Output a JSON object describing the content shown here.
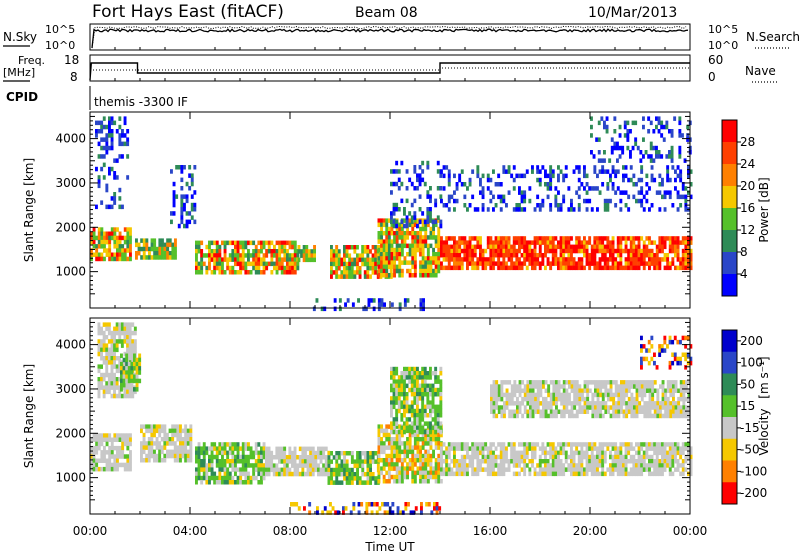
{
  "header": {
    "site_title": "Fort Hays East (fitACF)",
    "beam": "Beam 08",
    "date": "10/Mar/2013"
  },
  "panels": {
    "nsky": {
      "left_label": "N.Sky",
      "right_label": "N.Search",
      "tick_top": "10^5",
      "tick_bottom": "10^0",
      "rtick_top": "10^5",
      "rtick_bottom": "10^0"
    },
    "freq": {
      "left_label_1": "Freq.",
      "left_label_2": "[MHz]",
      "right_label": "Nave",
      "ticks_left": [
        "18",
        "8"
      ],
      "ticks_right": [
        "60",
        "0"
      ]
    },
    "cpid": {
      "label": "CPID",
      "text": "themis -3300 IF"
    }
  },
  "chart_data": [
    {
      "type": "heatmap",
      "name": "power",
      "ylabel": "Slant Range [km]",
      "y_ticks": [
        1000,
        2000,
        3000,
        4000
      ],
      "ylim": [
        180,
        4600
      ],
      "xlim_hours": [
        0,
        24
      ],
      "colorbar": {
        "label": "Power [dB]",
        "tick_labels": [
          "4",
          "8",
          "12",
          "16",
          "20",
          "24",
          "28"
        ],
        "colors": [
          "#0000ff",
          "#2a46c8",
          "#2e8b57",
          "#55c02a",
          "#f5c800",
          "#ff8000",
          "#ff4000",
          "#ff0000"
        ]
      },
      "echo_regions": [
        {
          "t_start": 0.0,
          "t_end": 1.6,
          "range_low": 1300,
          "range_high": 2000,
          "level": "high"
        },
        {
          "t_start": 0.2,
          "t_end": 1.5,
          "range_low": 2500,
          "range_high": 4500,
          "level": "low"
        },
        {
          "t_start": 1.8,
          "t_end": 3.4,
          "range_low": 1300,
          "range_high": 1750,
          "level": "mid"
        },
        {
          "t_start": 3.2,
          "t_end": 4.2,
          "range_low": 2000,
          "range_high": 3500,
          "level": "low"
        },
        {
          "t_start": 4.2,
          "t_end": 8.3,
          "range_low": 1000,
          "range_high": 1700,
          "level": "high"
        },
        {
          "t_start": 8.3,
          "t_end": 9.0,
          "range_low": 1300,
          "range_high": 1600,
          "level": "mid"
        },
        {
          "t_start": 9.6,
          "t_end": 12.0,
          "range_low": 900,
          "range_high": 1600,
          "level": "high"
        },
        {
          "t_start": 11.5,
          "t_end": 13.9,
          "range_low": 900,
          "range_high": 2200,
          "level": "high"
        },
        {
          "t_start": 12.0,
          "t_end": 14.0,
          "range_low": 2000,
          "range_high": 3500,
          "level": "low"
        },
        {
          "t_start": 14.0,
          "t_end": 24.0,
          "range_low": 1100,
          "range_high": 1800,
          "level": "veryhigh"
        },
        {
          "t_start": 14.0,
          "t_end": 24.0,
          "range_low": 2400,
          "range_high": 3400,
          "level": "low"
        },
        {
          "t_start": 20.0,
          "t_end": 24.0,
          "range_low": 3500,
          "range_high": 4500,
          "level": "low"
        },
        {
          "t_start": 8.5,
          "t_end": 13.5,
          "range_low": 200,
          "range_high": 400,
          "level": "low"
        }
      ]
    },
    {
      "type": "heatmap",
      "name": "velocity",
      "ylabel": "Slant Range [km]",
      "y_ticks": [
        1000,
        2000,
        3000,
        4000
      ],
      "ylim": [
        180,
        4600
      ],
      "xlabel": "Time UT",
      "x_tick_labels": [
        "00:00",
        "04:00",
        "08:00",
        "12:00",
        "16:00",
        "20:00",
        "00:00"
      ],
      "x_ticks_hours": [
        0,
        4,
        8,
        12,
        16,
        20,
        24
      ],
      "colorbar": {
        "label": "Velocity",
        "label_units": "[m s⁻¹]",
        "tick_labels": [
          "200",
          "100",
          "50",
          "15",
          "-15",
          "-50",
          "-100",
          "-200"
        ],
        "colors": [
          "#0000cc",
          "#2a46c8",
          "#2e8b57",
          "#55c02a",
          "#c8c8c8",
          "#f5c800",
          "#ff8000",
          "#ff0000"
        ]
      },
      "echo_regions": [
        {
          "t_start": 0.0,
          "t_end": 1.6,
          "range_low": 1200,
          "range_high": 2000,
          "class": "ground"
        },
        {
          "t_start": 0.3,
          "t_end": 1.8,
          "range_low": 2800,
          "range_high": 4500,
          "class": "ground"
        },
        {
          "t_start": 1.2,
          "t_end": 2.0,
          "range_low": 3000,
          "range_high": 3800,
          "class": "pos"
        },
        {
          "t_start": 2.0,
          "t_end": 4.0,
          "range_low": 1400,
          "range_high": 2200,
          "class": "ground"
        },
        {
          "t_start": 4.2,
          "t_end": 7.0,
          "range_low": 900,
          "range_high": 1800,
          "class": "pos"
        },
        {
          "t_start": 7.0,
          "t_end": 9.5,
          "range_low": 1100,
          "range_high": 1700,
          "class": "ground"
        },
        {
          "t_start": 9.5,
          "t_end": 11.5,
          "range_low": 900,
          "range_high": 1600,
          "class": "pos"
        },
        {
          "t_start": 11.5,
          "t_end": 14.0,
          "range_low": 900,
          "range_high": 2200,
          "class": "mixed"
        },
        {
          "t_start": 12.0,
          "t_end": 14.0,
          "range_low": 2000,
          "range_high": 3500,
          "class": "pos"
        },
        {
          "t_start": 14.0,
          "t_end": 24.0,
          "range_low": 1100,
          "range_high": 1800,
          "class": "ground"
        },
        {
          "t_start": 16.0,
          "t_end": 24.0,
          "range_low": 2400,
          "range_high": 3200,
          "class": "ground"
        },
        {
          "t_start": 22.0,
          "t_end": 24.0,
          "range_low": 3500,
          "range_high": 4200,
          "class": "neg"
        },
        {
          "t_start": 8.0,
          "t_end": 14.0,
          "range_low": 200,
          "range_high": 450,
          "class": "neg"
        }
      ]
    }
  ]
}
